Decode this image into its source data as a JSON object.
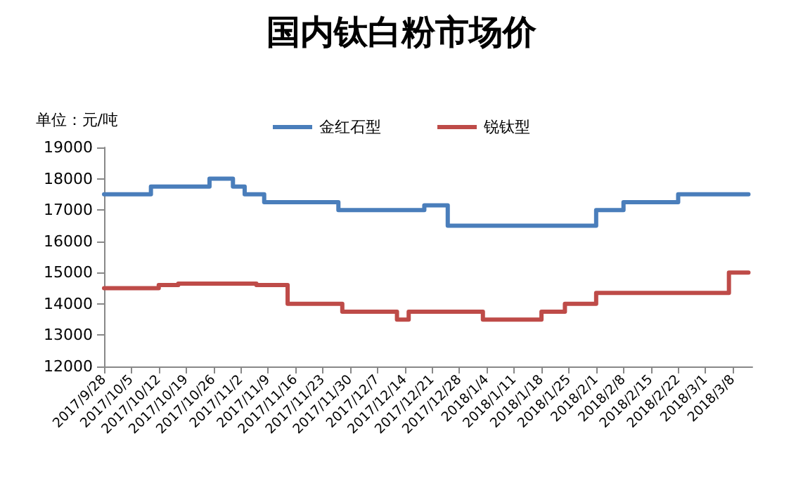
{
  "chart_data": {
    "type": "step",
    "title": "国内钛白粉市场价",
    "ylabel": "单位：元/吨",
    "series": [
      {
        "name": "金红石型",
        "color": "#4a7ebb",
        "x": [
          "2017-09-28",
          "2017-10-10",
          "2017-10-25",
          "2017-10-31",
          "2017-11-03",
          "2017-11-08",
          "2017-11-27",
          "2017-12-19",
          "2017-12-25",
          "2018-02-01",
          "2018-02-08",
          "2018-02-22",
          "2018-03-12"
        ],
        "values": [
          17500,
          17750,
          18000,
          17750,
          17500,
          17250,
          17000,
          17150,
          16500,
          17000,
          17250,
          17500,
          17500
        ]
      },
      {
        "name": "锐钛型",
        "color": "#be4b48",
        "x": [
          "2017-09-28",
          "2017-10-12",
          "2017-10-17",
          "2017-11-06",
          "2017-11-14",
          "2017-11-28",
          "2017-12-12",
          "2017-12-15",
          "2018-01-03",
          "2018-01-18",
          "2018-01-24",
          "2018-02-01",
          "2018-03-07",
          "2018-03-12"
        ],
        "values": [
          14500,
          14600,
          14650,
          14600,
          14000,
          13750,
          13500,
          13750,
          13500,
          13750,
          14000,
          14350,
          15000,
          15000
        ]
      }
    ],
    "xlim": [
      "2017-09-28",
      "2018-03-13"
    ],
    "xticks": [
      {
        "value": "2017-09-28",
        "label": "2017/9/28"
      },
      {
        "value": "2017-10-05",
        "label": "2017/10/5"
      },
      {
        "value": "2017-10-12",
        "label": "2017/10/12"
      },
      {
        "value": "2017-10-19",
        "label": "2017/10/19"
      },
      {
        "value": "2017-10-26",
        "label": "2017/10/26"
      },
      {
        "value": "2017-11-02",
        "label": "2017/11/2"
      },
      {
        "value": "2017-11-09",
        "label": "2017/11/9"
      },
      {
        "value": "2017-11-16",
        "label": "2017/11/16"
      },
      {
        "value": "2017-11-23",
        "label": "2017/11/23"
      },
      {
        "value": "2017-11-30",
        "label": "2017/11/30"
      },
      {
        "value": "2017-12-07",
        "label": "2017/12/7"
      },
      {
        "value": "2017-12-14",
        "label": "2017/12/14"
      },
      {
        "value": "2017-12-21",
        "label": "2017/12/21"
      },
      {
        "value": "2017-12-28",
        "label": "2017/12/28"
      },
      {
        "value": "2018-01-04",
        "label": "2018/1/4"
      },
      {
        "value": "2018-01-11",
        "label": "2018/1/11"
      },
      {
        "value": "2018-01-18",
        "label": "2018/1/18"
      },
      {
        "value": "2018-01-25",
        "label": "2018/1/25"
      },
      {
        "value": "2018-02-01",
        "label": "2018/2/1"
      },
      {
        "value": "2018-02-08",
        "label": "2018/2/8"
      },
      {
        "value": "2018-02-15",
        "label": "2018/2/15"
      },
      {
        "value": "2018-02-22",
        "label": "2018/2/22"
      },
      {
        "value": "2018-03-01",
        "label": "2018/3/1"
      },
      {
        "value": "2018-03-08",
        "label": "2018/3/8"
      }
    ],
    "ylim": [
      12000,
      19000
    ],
    "yticks": [
      12000,
      13000,
      14000,
      15000,
      16000,
      17000,
      18000,
      19000
    ],
    "grid": false,
    "legend": "top",
    "marker": "none",
    "line_style": "solid"
  }
}
